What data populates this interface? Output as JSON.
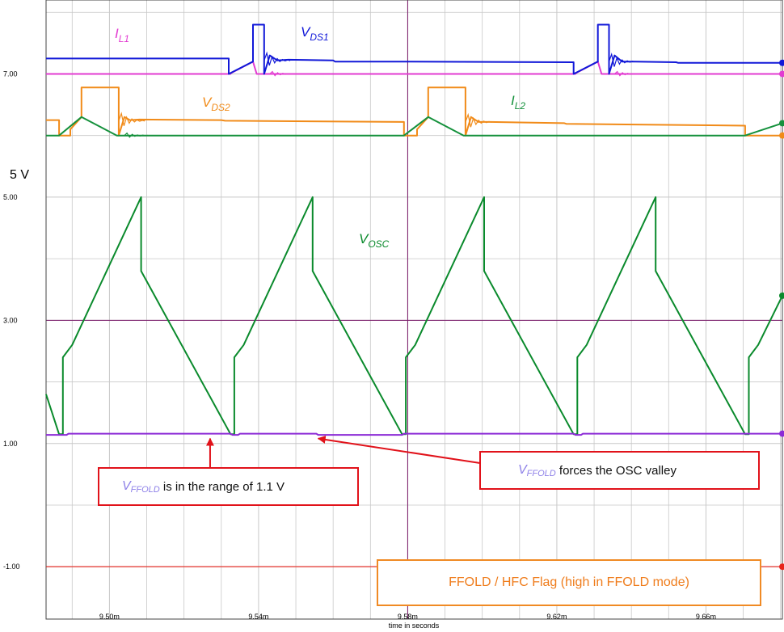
{
  "chart_data": {
    "type": "line",
    "x_axis": {
      "label": "time in seconds",
      "tick_labels": [
        "9.50m",
        "9.54m",
        "9.58m",
        "9.62m",
        "9.66m"
      ],
      "tick_values": [
        9.5,
        9.54,
        9.58,
        9.62,
        9.66
      ],
      "range_ms": [
        9.483,
        9.6805
      ]
    },
    "y_axis": {
      "tick_labels": [
        "7.00",
        "5.00",
        "3.00",
        "1.00",
        "-1.00"
      ],
      "tick_values": [
        7,
        5,
        3,
        1,
        -1
      ],
      "range": [
        -1.85,
        8.2
      ],
      "side_label": "5 V"
    },
    "grid": true,
    "series": [
      {
        "name": "I_L1",
        "name_main": "I",
        "name_sub": "L1",
        "color": "#e23bd1",
        "points": [
          [
            9.483,
            7.0
          ],
          [
            9.5325,
            7.0
          ],
          [
            9.5325,
            7.01
          ],
          [
            9.5385,
            7.2
          ],
          [
            9.5395,
            7.0
          ],
          [
            9.625,
            7.0
          ],
          [
            9.625,
            7.01
          ],
          [
            9.631,
            7.2
          ],
          [
            9.632,
            7.0
          ],
          [
            9.6805,
            7.0
          ]
        ]
      },
      {
        "name": "V_DS1",
        "name_main": "V",
        "name_sub": "DS1",
        "color": "#1118d8",
        "points": [
          [
            9.483,
            7.25
          ],
          [
            9.532,
            7.25
          ],
          [
            9.532,
            7.0
          ],
          [
            9.5385,
            7.2
          ],
          [
            9.5385,
            7.8
          ],
          [
            9.5415,
            7.8
          ],
          [
            9.5415,
            7.0
          ],
          [
            9.543,
            7.3
          ],
          [
            9.545,
            7.22
          ],
          [
            9.548,
            7.23
          ],
          [
            9.56,
            7.22
          ],
          [
            9.5605,
            7.2
          ],
          [
            9.58,
            7.2
          ],
          [
            9.6245,
            7.19
          ],
          [
            9.6245,
            7.0
          ],
          [
            9.631,
            7.2
          ],
          [
            9.631,
            7.8
          ],
          [
            9.634,
            7.8
          ],
          [
            9.634,
            7.0
          ],
          [
            9.6355,
            7.3
          ],
          [
            9.6375,
            7.2
          ],
          [
            9.641,
            7.2
          ],
          [
            9.652,
            7.19
          ],
          [
            9.6525,
            7.18
          ],
          [
            9.6805,
            7.18
          ]
        ]
      },
      {
        "name": "V_DS2",
        "name_main": "V",
        "name_sub": "DS2",
        "color": "#f18b19",
        "points": [
          [
            9.483,
            6.25
          ],
          [
            9.4865,
            6.25
          ],
          [
            9.4865,
            6.0
          ],
          [
            9.4895,
            6.0
          ],
          [
            9.4895,
            6.1
          ],
          [
            9.4925,
            6.3
          ],
          [
            9.4925,
            6.78
          ],
          [
            9.5025,
            6.78
          ],
          [
            9.5025,
            6.0
          ],
          [
            9.504,
            6.3
          ],
          [
            9.5055,
            6.25
          ],
          [
            9.508,
            6.26
          ],
          [
            9.53,
            6.25
          ],
          [
            9.531,
            6.24
          ],
          [
            9.579,
            6.22
          ],
          [
            9.579,
            6.0
          ],
          [
            9.5825,
            6.0
          ],
          [
            9.5825,
            6.1
          ],
          [
            9.5855,
            6.3
          ],
          [
            9.5855,
            6.78
          ],
          [
            9.5955,
            6.78
          ],
          [
            9.5955,
            6.0
          ],
          [
            9.597,
            6.3
          ],
          [
            9.599,
            6.22
          ],
          [
            9.602,
            6.22
          ],
          [
            9.622,
            6.2
          ],
          [
            9.6225,
            6.19
          ],
          [
            9.6705,
            6.16
          ],
          [
            9.6705,
            6.0
          ],
          [
            9.6805,
            6.0
          ]
        ]
      },
      {
        "name": "I_L2",
        "name_main": "I",
        "name_sub": "L2",
        "color": "#15913c",
        "points": [
          [
            9.483,
            6.0
          ],
          [
            9.4865,
            6.0
          ],
          [
            9.4925,
            6.3
          ],
          [
            9.502,
            6.0
          ],
          [
            9.579,
            6.0
          ],
          [
            9.5855,
            6.3
          ],
          [
            9.595,
            6.0
          ],
          [
            9.6705,
            6.0
          ],
          [
            9.6805,
            6.2
          ]
        ]
      },
      {
        "name": "V_OSC",
        "name_main": "V",
        "name_sub": "OSC",
        "color": "#0a8a2c",
        "points": [
          [
            9.483,
            1.8
          ],
          [
            9.4865,
            1.15
          ],
          [
            9.4875,
            1.15
          ],
          [
            9.4875,
            2.4
          ],
          [
            9.49,
            2.6
          ],
          [
            9.5085,
            5.0
          ],
          [
            9.5085,
            3.8
          ],
          [
            9.5325,
            1.15
          ],
          [
            9.5335,
            1.15
          ],
          [
            9.5335,
            2.4
          ],
          [
            9.536,
            2.6
          ],
          [
            9.5545,
            5.0
          ],
          [
            9.5545,
            3.8
          ],
          [
            9.5785,
            1.15
          ],
          [
            9.5795,
            1.15
          ],
          [
            9.5795,
            2.4
          ],
          [
            9.582,
            2.6
          ],
          [
            9.6005,
            5.0
          ],
          [
            9.6005,
            3.8
          ],
          [
            9.6245,
            1.15
          ],
          [
            9.6255,
            1.15
          ],
          [
            9.6255,
            2.4
          ],
          [
            9.628,
            2.6
          ],
          [
            9.6465,
            5.0
          ],
          [
            9.6465,
            3.8
          ],
          [
            9.6705,
            1.15
          ],
          [
            9.6715,
            1.15
          ],
          [
            9.6715,
            2.4
          ],
          [
            9.674,
            2.6
          ],
          [
            9.6805,
            3.4
          ]
        ]
      },
      {
        "name": "V_FFOLD",
        "name_main": "V",
        "name_sub": "FFOLD",
        "color": "#8c2bd6",
        "points": [
          [
            9.483,
            1.14
          ],
          [
            9.4885,
            1.14
          ],
          [
            9.489,
            1.16
          ],
          [
            9.5325,
            1.16
          ],
          [
            9.533,
            1.14
          ],
          [
            9.5345,
            1.14
          ],
          [
            9.535,
            1.16
          ],
          [
            9.5555,
            1.16
          ],
          [
            9.556,
            1.14
          ],
          [
            9.5785,
            1.14
          ],
          [
            9.579,
            1.16
          ],
          [
            9.6245,
            1.16
          ],
          [
            9.625,
            1.14
          ],
          [
            9.6265,
            1.14
          ],
          [
            9.627,
            1.16
          ],
          [
            9.6805,
            1.16
          ]
        ]
      },
      {
        "name": "FFOLD / HFC Flag",
        "name_main": "",
        "name_sub": "",
        "color": "#e8231b",
        "points": [
          [
            9.483,
            -1.0
          ],
          [
            9.6805,
            -1.0
          ]
        ]
      }
    ],
    "annotations": [
      {
        "label_main": "V",
        "label_sub": "FFOLD",
        "text": " is in the range of 1.1 V",
        "arrow_to": [
          9.527,
          1.16
        ]
      },
      {
        "label_main": "V",
        "label_sub": "FFOLD",
        "text": " forces the OSC valley",
        "arrow_to": [
          9.556,
          1.16
        ]
      }
    ],
    "flag_label": "FFOLD / HFC Flag (high in FFOLD mode)"
  }
}
